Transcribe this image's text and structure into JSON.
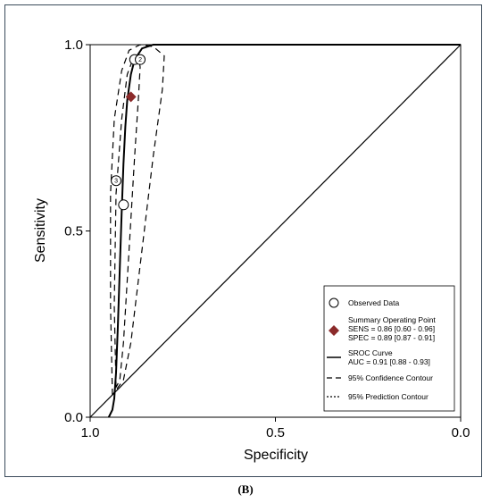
{
  "chart_data": {
    "type": "scatter",
    "xlabel": "Specificity",
    "ylabel": "Sensitivity",
    "xlim": [
      1.0,
      0.0
    ],
    "ylim": [
      0.0,
      1.0
    ],
    "x_ticks": [
      "1.0",
      "0.5",
      "0.0"
    ],
    "y_ticks": [
      "0.0",
      "0.5",
      "1.0"
    ],
    "grid": false,
    "legend_position": "bottom-right",
    "observed_data": [
      {
        "specificity": 0.88,
        "sensitivity": 0.96,
        "label": ""
      },
      {
        "specificity": 0.865,
        "sensitivity": 0.96,
        "label": "2"
      },
      {
        "specificity": 0.93,
        "sensitivity": 0.635,
        "label": "3"
      },
      {
        "specificity": 0.91,
        "sensitivity": 0.57,
        "label": ""
      }
    ],
    "summary_point": {
      "specificity": 0.89,
      "sensitivity": 0.86,
      "color": "#8b2a2a"
    },
    "sroc_curve": [
      [
        0.95,
        0.0
      ],
      [
        0.94,
        0.02
      ],
      [
        0.935,
        0.05
      ],
      [
        0.93,
        0.12
      ],
      [
        0.925,
        0.25
      ],
      [
        0.92,
        0.4
      ],
      [
        0.915,
        0.55
      ],
      [
        0.91,
        0.68
      ],
      [
        0.905,
        0.78
      ],
      [
        0.9,
        0.85
      ],
      [
        0.89,
        0.92
      ],
      [
        0.88,
        0.96
      ],
      [
        0.86,
        0.99
      ],
      [
        0.83,
        1.0
      ],
      [
        0.0,
        1.0
      ]
    ],
    "confidence_contour": [
      [
        0.93,
        0.08
      ],
      [
        0.935,
        0.3
      ],
      [
        0.93,
        0.6
      ],
      [
        0.915,
        0.8
      ],
      [
        0.9,
        0.92
      ],
      [
        0.885,
        0.96
      ],
      [
        0.87,
        0.97
      ],
      [
        0.865,
        0.94
      ],
      [
        0.87,
        0.85
      ],
      [
        0.88,
        0.7
      ],
      [
        0.895,
        0.45
      ],
      [
        0.91,
        0.2
      ],
      [
        0.92,
        0.1
      ],
      [
        0.93,
        0.08
      ]
    ],
    "prediction_contour": [
      [
        0.94,
        0.06
      ],
      [
        0.945,
        0.3
      ],
      [
        0.945,
        0.6
      ],
      [
        0.935,
        0.8
      ],
      [
        0.915,
        0.93
      ],
      [
        0.895,
        0.985
      ],
      [
        0.865,
        1.0
      ],
      [
        0.83,
        0.995
      ],
      [
        0.8,
        0.97
      ],
      [
        0.805,
        0.88
      ],
      [
        0.83,
        0.7
      ],
      [
        0.86,
        0.45
      ],
      [
        0.89,
        0.2
      ],
      [
        0.91,
        0.1
      ],
      [
        0.94,
        0.06
      ]
    ],
    "legend": {
      "observed": "Observed Data",
      "summary_title": "Summary Operating Point",
      "summary_sens": "SENS = 0.86 [0.60 - 0.96]",
      "summary_spec": "SPEC = 0.89 [0.87 - 0.91]",
      "sroc_title": "SROC Curve",
      "sroc_auc": "AUC = 0.91 [0.88 - 0.93]",
      "confidence": "95% Confidence Contour",
      "prediction": "95% Prediction Contour"
    }
  },
  "panel_label": "(B)"
}
